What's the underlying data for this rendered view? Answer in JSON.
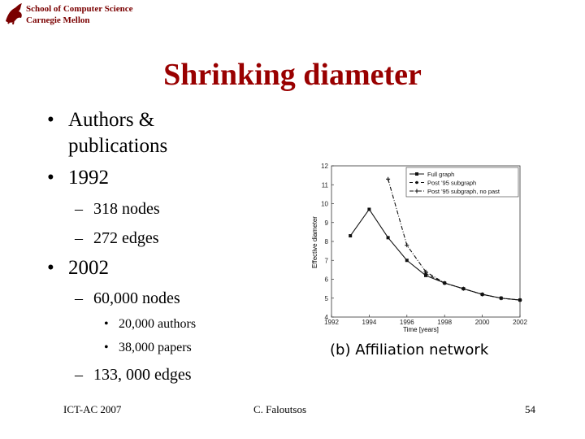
{
  "header": {
    "school_line1": "School of Computer Science",
    "school_line2": "Carnegie Mellon"
  },
  "slide": {
    "title": "Shrinking diameter",
    "bullets": [
      {
        "text": "Authors &",
        "cont": "publications"
      },
      {
        "text": "1992",
        "sub": [
          "318 nodes",
          "272 edges"
        ]
      },
      {
        "text": "2002",
        "sub": [
          "60,000 nodes",
          "133, 000 edges"
        ],
        "subsub": [
          "20,000 authors",
          "38,000 papers"
        ]
      }
    ],
    "bullet_glyph": "•",
    "dash_glyph": "–"
  },
  "footer": {
    "left": "ICT-AC 2007",
    "center": "C. Faloutsos",
    "page": "54"
  },
  "chart_data": {
    "type": "line",
    "xlabel": "Time [years]",
    "ylabel": "Effective diameter",
    "caption": "(b) Affiliation network",
    "x_ticks": [
      "1992",
      "1994",
      "1996",
      "1998",
      "2000",
      "2002"
    ],
    "y_ticks": [
      "4",
      "5",
      "6",
      "7",
      "8",
      "9",
      "10",
      "11",
      "12"
    ],
    "xlim": [
      1992,
      2002
    ],
    "ylim": [
      4,
      12
    ],
    "legend_position": "top-right",
    "series": [
      {
        "name": "Full graph",
        "style": "solid",
        "marker": "square",
        "x": [
          1993,
          1994,
          1995,
          1996,
          1997,
          1998,
          1999,
          2000,
          2001,
          2002
        ],
        "y": [
          8.3,
          9.7,
          8.2,
          7.0,
          6.2,
          5.8,
          5.5,
          5.2,
          5.0,
          4.9
        ]
      },
      {
        "name": "Post '95 subgraph",
        "style": "dashed",
        "marker": "circle",
        "x": [
          1997,
          1998,
          1999,
          2000,
          2001,
          2002
        ],
        "y": [
          6.3,
          5.8,
          5.5,
          5.2,
          5.0,
          4.9
        ]
      },
      {
        "name": "Post '95 subgraph, no past",
        "style": "dashdot",
        "marker": "plus",
        "x": [
          1995,
          1996,
          1997,
          1998,
          1999,
          2000,
          2001,
          2002
        ],
        "y": [
          11.3,
          7.8,
          6.4,
          5.8,
          5.5,
          5.2,
          5.0,
          4.9
        ]
      }
    ]
  }
}
